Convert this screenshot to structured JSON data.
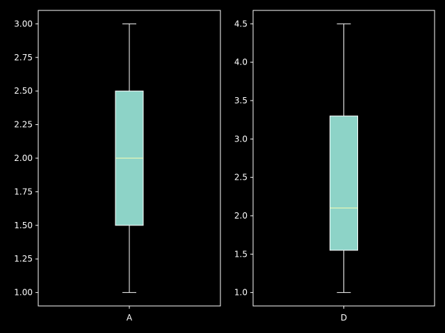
{
  "chart_data": [
    {
      "type": "box",
      "title": "",
      "xlabel": "",
      "ylabel": "",
      "categories": [
        "A"
      ],
      "ylim": [
        0.9,
        3.1
      ],
      "yticks": [
        1.0,
        1.25,
        1.5,
        1.75,
        2.0,
        2.25,
        2.5,
        2.75,
        3.0
      ],
      "ytick_labels": [
        "1.00",
        "1.25",
        "1.50",
        "1.75",
        "2.00",
        "2.25",
        "2.50",
        "2.75",
        "3.00"
      ],
      "boxes": [
        {
          "label": "A",
          "whisker_low": 1.0,
          "q1": 1.5,
          "median": 2.0,
          "q3": 2.5,
          "whisker_high": 3.0
        }
      ],
      "grid": false
    },
    {
      "type": "box",
      "title": "",
      "xlabel": "",
      "ylabel": "",
      "categories": [
        "D"
      ],
      "ylim": [
        0.825,
        4.675
      ],
      "yticks": [
        1.0,
        1.5,
        2.0,
        2.5,
        3.0,
        3.5,
        4.0,
        4.5
      ],
      "ytick_labels": [
        "1.0",
        "1.5",
        "2.0",
        "2.5",
        "3.0",
        "3.5",
        "4.0",
        "4.5"
      ],
      "boxes": [
        {
          "label": "D",
          "whisker_low": 1.0,
          "q1": 1.55,
          "median": 2.1,
          "q3": 3.3,
          "whisker_high": 4.5
        }
      ],
      "grid": false
    }
  ],
  "colors": {
    "background": "#000000",
    "box_fill": "#8dd3c7",
    "median": "#feffb3",
    "lines": "#ffffff"
  }
}
